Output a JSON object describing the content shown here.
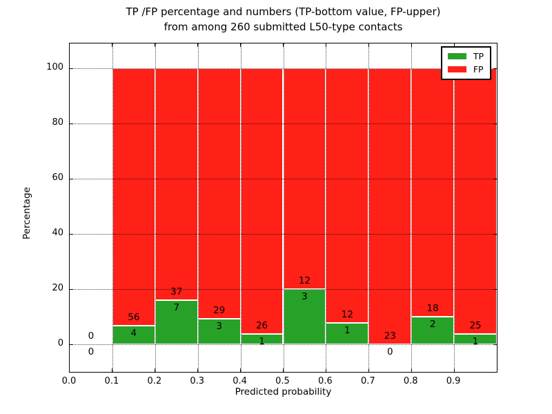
{
  "title": {
    "line1": "TP /FP percentage and numbers (TP-bottom value, FP-upper)",
    "line2": "from among 260 submitted L50-type contacts"
  },
  "axes": {
    "xlabel": "Predicted probability",
    "ylabel": "Percentage",
    "x_tick_labels": [
      "0.0",
      "0.1",
      "0.2",
      "0.3",
      "0.4",
      "0.5",
      "0.6",
      "0.7",
      "0.8",
      "0.9"
    ],
    "x_tick_values": [
      0,
      0.1,
      0.2,
      0.3,
      0.4,
      0.5,
      0.6,
      0.7,
      0.8,
      0.9
    ],
    "y_tick_labels": [
      "0",
      "20",
      "40",
      "60",
      "80",
      "100"
    ],
    "y_tick_values": [
      0,
      20,
      40,
      60,
      80,
      100
    ],
    "xlim": [
      0.0,
      1.0
    ],
    "ylim": [
      -10.25,
      109.25
    ],
    "grid_style": "dotted",
    "grid_above_bars": true
  },
  "legend": {
    "position": "upper-right",
    "items": [
      {
        "label": "TP",
        "color": "#28a128"
      },
      {
        "label": "FP",
        "color": "#ff2017"
      }
    ]
  },
  "colors": {
    "tp_green": "#28a128",
    "fp_red": "#ff2017",
    "bar_edge": "#ffffff",
    "background": "#ffffff",
    "text": "#000000"
  },
  "chart_data": {
    "type": "bar",
    "stacked": true,
    "normalized_to_100_percent": true,
    "title": "TP /FP percentage and numbers (TP-bottom value, FP-upper) from among 260 submitted L50-type contacts",
    "xlabel": "Predicted probability",
    "ylabel": "Percentage",
    "total_contacts": 260,
    "bin_edges": [
      0.0,
      0.1,
      0.2,
      0.3,
      0.4,
      0.5,
      0.6,
      0.7,
      0.8,
      0.9,
      1.0
    ],
    "series": [
      {
        "name": "TP",
        "color": "#28a128",
        "position": "bottom",
        "counts": [
          0,
          4,
          7,
          3,
          1,
          3,
          1,
          0,
          2,
          1
        ]
      },
      {
        "name": "FP",
        "color": "#ff2017",
        "position": "upper",
        "counts": [
          0,
          56,
          37,
          29,
          26,
          12,
          12,
          23,
          18,
          25
        ]
      }
    ],
    "tp_percent_per_bin": [
      0,
      6.67,
      15.91,
      9.38,
      3.7,
      20.0,
      7.69,
      0,
      10.0,
      3.85
    ],
    "annotation_rule": "FP count printed just above TP/FP boundary, TP count just below it"
  }
}
